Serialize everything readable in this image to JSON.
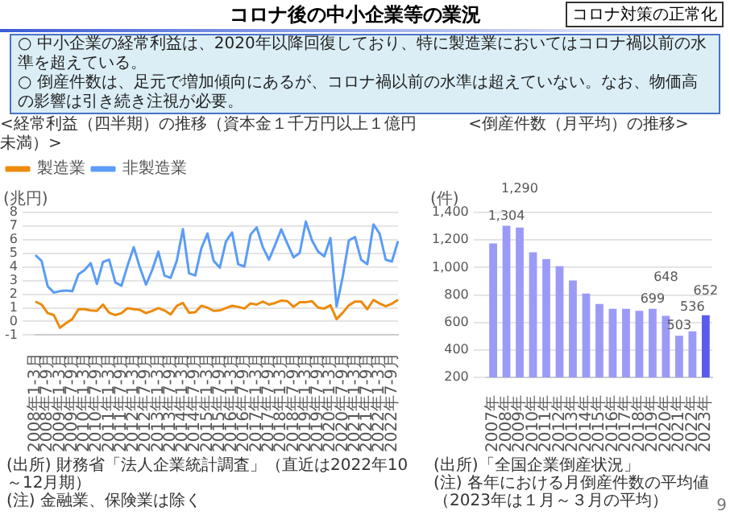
{
  "chart_data": [
    {
      "type": "other",
      "title": "コロナ後の中小企業等の業況",
      "annotations": [
        "コロナ対策の正常化",
        "○ 中小企業の経常利益は、2020年以降回復しており、特に製造業においてはコロナ禍以前の水準を超えている。",
        "○ 倒産件数は、足元で増加傾向にあるが、コロナ禍以前の水準は超えていない。なお、物価高の影響は引き続き注視が必要。",
        "9"
      ]
    },
    {
      "type": "line",
      "title": "<経常利益（四半期）の推移（資本金１千万円以上１億円未満）>",
      "ylabel": "(兆円)",
      "categories": [
        "2008年1-3月",
        null,
        "2008年7-9月",
        null,
        "2009年1-3月",
        null,
        "2009年7-9月",
        null,
        "2010年1-3月",
        null,
        "2010年7-9月",
        null,
        "2011年1-3月",
        null,
        "2011年7-9月",
        null,
        "2012年1-3月",
        null,
        "2012年7-9月",
        null,
        "2013年1-3月",
        null,
        "2013年7-9月",
        null,
        "2014年1-3月",
        null,
        "2014年7-9月",
        null,
        "2015年1-3月",
        null,
        "2015年7-9月",
        null,
        "2016年1-3月",
        null,
        "2016年7-9月",
        null,
        "2017年1-3月",
        null,
        "2017年7-9月",
        null,
        "2018年1-3月",
        null,
        "2018年7-9月",
        null,
        "2019年1-3月",
        null,
        "2019年7-9月",
        null,
        "2020年1-3月",
        null,
        "2020年7-9月",
        null,
        "2021年1-3月",
        null,
        "2021年7-9月",
        null,
        "2022年1-3月",
        null,
        "2022年7-9月",
        null
      ],
      "series": [
        {
          "name": "製造業",
          "color": "#ed8a0a",
          "values": [
            1.46,
            1.24,
            0.61,
            0.47,
            -0.46,
            -0.12,
            0.17,
            0.9,
            0.9,
            0.81,
            0.78,
            1.24,
            0.64,
            0.47,
            0.61,
            0.98,
            0.9,
            0.85,
            0.61,
            0.78,
            0.98,
            0.81,
            0.51,
            1.15,
            1.36,
            0.64,
            0.68,
            1.15,
            1.02,
            0.78,
            0.81,
            0.98,
            1.15,
            1.07,
            0.95,
            1.32,
            1.24,
            1.46,
            1.24,
            1.36,
            1.53,
            1.49,
            1.07,
            1.41,
            1.41,
            1.49,
            1.02,
            0.95,
            1.19,
            0.17,
            0.64,
            1.19,
            1.46,
            1.46,
            0.9,
            1.58,
            1.32,
            1.12,
            1.3,
            1.6
          ]
        },
        {
          "name": "非製造業",
          "color": "#5b9cf6",
          "values": [
            4.87,
            4.45,
            2.58,
            2.12,
            2.23,
            2.27,
            2.22,
            3.45,
            3.78,
            4.28,
            2.75,
            4.37,
            4.53,
            2.87,
            2.62,
            4.12,
            5.45,
            3.95,
            2.7,
            3.78,
            5.12,
            3.37,
            3.2,
            4.45,
            6.78,
            3.53,
            3.37,
            5.37,
            6.45,
            4.45,
            3.95,
            5.87,
            6.53,
            4.2,
            4.03,
            6.37,
            6.9,
            5.45,
            4.53,
            5.62,
            6.75,
            5.7,
            4.7,
            5.03,
            7.33,
            5.95,
            5.12,
            4.78,
            6.12,
            1.1,
            3.28,
            5.95,
            6.2,
            4.53,
            4.2,
            7.12,
            6.45,
            4.53,
            4.4,
            5.9
          ]
        }
      ],
      "ylim": [
        -1,
        8
      ],
      "yticks": [
        -1,
        0,
        1,
        2,
        3,
        4,
        5,
        6,
        7,
        8
      ],
      "grid": "y",
      "legend": "top left",
      "marker": "none",
      "annotations": [
        "(出所) 財務省「法人企業統計調査」（直近は2022年10～12月期）",
        "(注) 金融業、保険業は除く"
      ]
    },
    {
      "type": "bar",
      "title": "<倒産件数（月平均）の推移>",
      "ylabel": "(件)",
      "categories": [
        "2007年",
        "2008年",
        "2009年",
        "2010年",
        "2011年",
        "2012年",
        "2013年",
        "2014年",
        "2015年",
        "2016年",
        "2017年",
        "2018年",
        "2019年",
        "2020年",
        "2021年",
        "2022年",
        "2023年"
      ],
      "values": [
        1175,
        1304,
        1290,
        1110,
        1060,
        1010,
        905,
        810,
        735,
        700,
        700,
        685,
        699,
        648,
        503,
        536,
        652
      ],
      "colors": [
        "#9b9bf7",
        "#9b9bf7",
        "#9b9bf7",
        "#9b9bf7",
        "#9b9bf7",
        "#9b9bf7",
        "#9b9bf7",
        "#9b9bf7",
        "#9b9bf7",
        "#9b9bf7",
        "#9b9bf7",
        "#9b9bf7",
        "#9b9bf7",
        "#9b9bf7",
        "#9b9bf7",
        "#9b9bf7",
        "#5c5cec"
      ],
      "value_labels": [
        null,
        "1,304",
        "1,290",
        null,
        null,
        null,
        null,
        null,
        null,
        null,
        null,
        null,
        "699",
        "648",
        "503",
        "536",
        "652"
      ],
      "ylim": [
        200,
        1400
      ],
      "yticks": [
        200,
        400,
        600,
        800,
        {
          "value": 1000,
          "label": "1,000"
        },
        {
          "value": 1200,
          "label": "1,200"
        },
        {
          "value": 1400,
          "label": "1,400"
        }
      ],
      "grid": "y",
      "annotations": [
        "(出所)「全国企業倒産状況」",
        "(注) 各年における月倒産件数の平均値（2023年は１月～３月の平均）"
      ]
    }
  ]
}
